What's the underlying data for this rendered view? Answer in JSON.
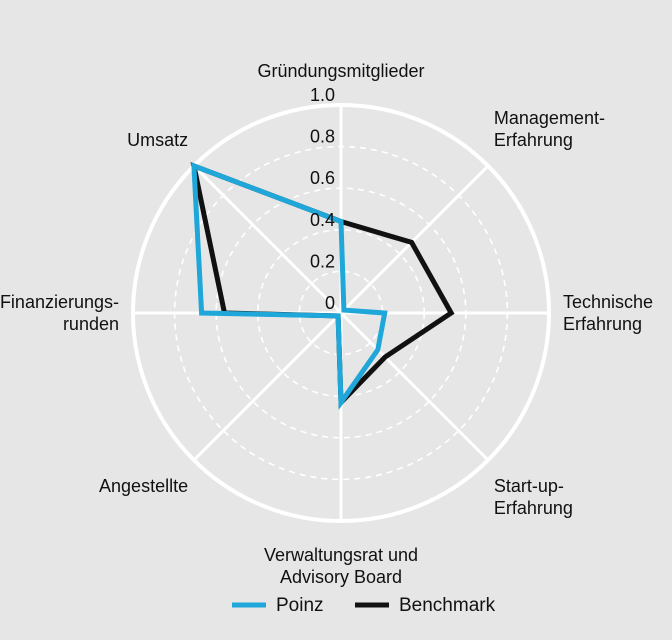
{
  "chart_data": {
    "type": "radar",
    "axes": [
      "Gründungsmitglieder",
      "Management-\nErfahrung",
      "Technische\nErfahrung",
      "Start-up-\nErfahrung",
      "Verwaltungsrat und\nAdvisory Board",
      "Angestellte",
      "Finanzierungs-\nrunden",
      "Umsatz"
    ],
    "ticks": [
      "0",
      "0.2",
      "0.4",
      "0.6",
      "0.8",
      "1.0"
    ],
    "tick_values": [
      0,
      0.2,
      0.4,
      0.6,
      0.8,
      1.0
    ],
    "rlim": [
      0,
      1
    ],
    "grid": true,
    "legend_position": "bottom",
    "series": [
      {
        "name": "Poinz",
        "color": "#1ea7d8",
        "values": [
          0.44,
          0.02,
          0.21,
          0.25,
          0.43,
          0.02,
          0.67,
          1.0
        ]
      },
      {
        "name": "Benchmark",
        "color": "#111111",
        "values": [
          0.44,
          0.48,
          0.53,
          0.3,
          0.43,
          0.02,
          0.56,
          1.0
        ]
      }
    ]
  }
}
